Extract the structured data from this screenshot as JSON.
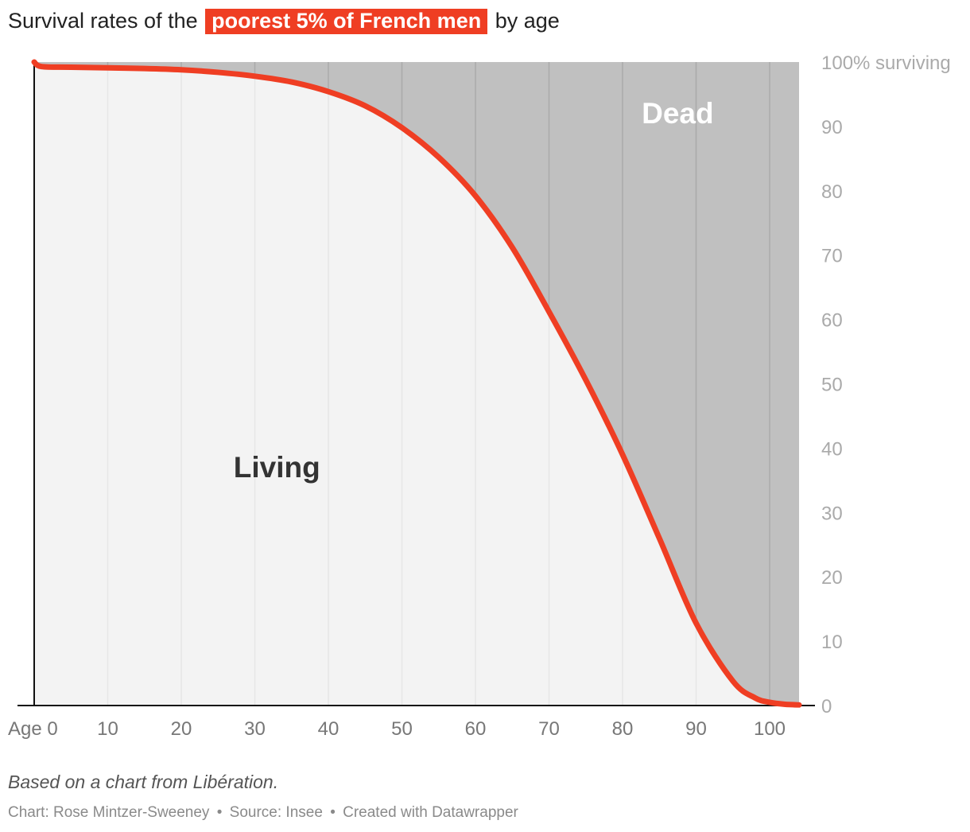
{
  "title": {
    "prefix": "Survival rates of the",
    "highlight": "poorest 5% of French men",
    "suffix": "by age"
  },
  "colors": {
    "accent": "#ef3e23",
    "living_fill": "#f3f3f3",
    "dead_fill": "#c0c0c0",
    "grid_living": "#e6e6e6",
    "grid_dead": "#aaaaaa",
    "axis": "#111111",
    "tick_text": "#777777",
    "right_tick_text": "#aaaaaa"
  },
  "chart_data": {
    "type": "area",
    "title": "Survival rates of the poorest 5% of French men by age",
    "xlabel": "Age",
    "ylabel": "% surviving",
    "xlim": [
      0,
      104
    ],
    "ylim": [
      0,
      100
    ],
    "x_ticks": [
      {
        "value": 0,
        "label": "Age 0"
      },
      {
        "value": 10,
        "label": "10"
      },
      {
        "value": 20,
        "label": "20"
      },
      {
        "value": 30,
        "label": "30"
      },
      {
        "value": 40,
        "label": "40"
      },
      {
        "value": 50,
        "label": "50"
      },
      {
        "value": 60,
        "label": "60"
      },
      {
        "value": 70,
        "label": "70"
      },
      {
        "value": 80,
        "label": "80"
      },
      {
        "value": 90,
        "label": "90"
      },
      {
        "value": 100,
        "label": "100"
      }
    ],
    "y_ticks": [
      {
        "value": 100,
        "label": "100% surviving"
      },
      {
        "value": 90,
        "label": "90"
      },
      {
        "value": 80,
        "label": "80"
      },
      {
        "value": 70,
        "label": "70"
      },
      {
        "value": 60,
        "label": "60"
      },
      {
        "value": 50,
        "label": "50"
      },
      {
        "value": 40,
        "label": "40"
      },
      {
        "value": 30,
        "label": "30"
      },
      {
        "value": 20,
        "label": "20"
      },
      {
        "value": 10,
        "label": "10"
      },
      {
        "value": 0,
        "label": "0"
      }
    ],
    "series": [
      {
        "name": "Surviving",
        "x": [
          0,
          1,
          5,
          10,
          15,
          20,
          25,
          30,
          35,
          40,
          45,
          50,
          55,
          60,
          65,
          70,
          75,
          80,
          85,
          90,
          95,
          98,
          100,
          102,
          104
        ],
        "values": [
          100,
          99.3,
          99.2,
          99.1,
          99.0,
          98.8,
          98.4,
          97.8,
          96.9,
          95.4,
          93.2,
          89.8,
          85.2,
          79.2,
          71.2,
          61.2,
          50.6,
          39.0,
          26.0,
          12.8,
          3.8,
          1.2,
          0.5,
          0.2,
          0.1
        ]
      }
    ],
    "annotations": [
      {
        "text": "Dead",
        "x": 87.5,
        "y": 90.5,
        "color": "#ffffff"
      },
      {
        "text": "Living",
        "x": 33,
        "y": 35.5,
        "color": "#333333"
      }
    ]
  },
  "footer": {
    "note": "Based on a chart from Libération.",
    "credits": [
      "Chart: Rose Mintzer-Sweeney",
      "Source: Insee",
      "Created with Datawrapper"
    ],
    "separator": "•"
  }
}
